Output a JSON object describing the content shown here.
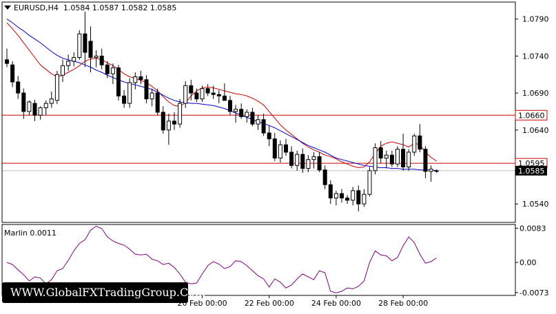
{
  "header": {
    "symbol": "EURUSD,H4",
    "ohlc": "1.0584 1.0587 1.0582 1.0585"
  },
  "watermark": "WWW.GlobalFXTradingGroup.Com",
  "colors": {
    "background": "#ffffff",
    "grid": "#c8c8c8",
    "candle_bull": "#ffffff",
    "candle_bear": "#000000",
    "red_ma": "#cc0000",
    "blue_ma": "#0000cc",
    "marlin": "#800080",
    "level_line": "#cc0000"
  },
  "chart_data": [
    {
      "type": "candlestick",
      "title": "EURUSD,H4",
      "ylim": [
        1.0515,
        1.0813
      ],
      "y_ticks": [
        "1.0790",
        "1.0740",
        "1.0690",
        "1.0640",
        "1.0540"
      ],
      "x_ticks": [
        "20 Feb 00:00",
        "22 Feb 00:00",
        "24 Feb 00:00",
        "28 Feb 00:00"
      ],
      "levels": [
        {
          "label": "1.0660",
          "value": 1.066
        },
        {
          "label": "1.0595",
          "value": 1.0595
        }
      ],
      "current_price": {
        "label": "1.0585",
        "value": 1.0585
      },
      "grid": true,
      "candles": [
        [
          1.0735,
          1.075,
          1.0725,
          1.073
        ],
        [
          1.0728,
          1.0733,
          1.0698,
          1.0705
        ],
        [
          1.0705,
          1.0713,
          1.0682,
          1.069
        ],
        [
          1.069,
          1.0696,
          1.0655,
          1.0665
        ],
        [
          1.0665,
          1.068,
          1.066,
          1.0678
        ],
        [
          1.0676,
          1.0681,
          1.0652,
          1.066
        ],
        [
          1.066,
          1.0672,
          1.0654,
          1.067
        ],
        [
          1.067,
          1.068,
          1.066,
          1.0676
        ],
        [
          1.0676,
          1.0692,
          1.067,
          1.0682
        ],
        [
          1.068,
          1.072,
          1.0675,
          1.0715
        ],
        [
          1.0714,
          1.0735,
          1.0705,
          1.0727
        ],
        [
          1.0727,
          1.0742,
          1.072,
          1.0733
        ],
        [
          1.0733,
          1.0745,
          1.0726,
          1.0738
        ],
        [
          1.0738,
          1.0775,
          1.0735,
          1.077
        ],
        [
          1.077,
          1.08,
          1.0725,
          1.0745
        ],
        [
          1.076,
          1.078,
          1.0718,
          1.0738
        ],
        [
          1.0738,
          1.0748,
          1.0725,
          1.074
        ],
        [
          1.074,
          1.075,
          1.0722,
          1.0728
        ],
        [
          1.0728,
          1.0733,
          1.071,
          1.0716
        ],
        [
          1.0716,
          1.073,
          1.0702,
          1.0724
        ],
        [
          1.0724,
          1.0728,
          1.068,
          1.0686
        ],
        [
          1.0686,
          1.0694,
          1.067,
          1.0676
        ],
        [
          1.0676,
          1.071,
          1.067,
          1.0704
        ],
        [
          1.0704,
          1.0718,
          1.0695,
          1.0712
        ],
        [
          1.0712,
          1.072,
          1.0702,
          1.0708
        ],
        [
          1.0708,
          1.0714,
          1.0676,
          1.0682
        ],
        [
          1.0682,
          1.0696,
          1.0672,
          1.069
        ],
        [
          1.069,
          1.0696,
          1.066,
          1.0664
        ],
        [
          1.0664,
          1.0672,
          1.0635,
          1.064
        ],
        [
          1.064,
          1.0662,
          1.062,
          1.0652
        ],
        [
          1.0652,
          1.0664,
          1.064,
          1.0648
        ],
        [
          1.0648,
          1.0682,
          1.0643,
          1.0676
        ],
        [
          1.0676,
          1.0706,
          1.067,
          1.07
        ],
        [
          1.07,
          1.0708,
          1.068,
          1.069
        ],
        [
          1.069,
          1.0696,
          1.0678,
          1.0682
        ],
        [
          1.0682,
          1.07,
          1.0678,
          1.0696
        ],
        [
          1.0696,
          1.0702,
          1.0686,
          1.069
        ],
        [
          1.069,
          1.07,
          1.0682,
          1.0688
        ],
        [
          1.0688,
          1.0694,
          1.0676,
          1.0686
        ],
        [
          1.0686,
          1.0703,
          1.0682,
          1.068
        ],
        [
          1.068,
          1.0686,
          1.066,
          1.0665
        ],
        [
          1.0665,
          1.0674,
          1.065,
          1.0668
        ],
        [
          1.0668,
          1.0676,
          1.0655,
          1.0658
        ],
        [
          1.0658,
          1.0668,
          1.065,
          1.0664
        ],
        [
          1.0664,
          1.067,
          1.0645,
          1.0648
        ],
        [
          1.0648,
          1.066,
          1.064,
          1.0654
        ],
        [
          1.0654,
          1.0662,
          1.0632,
          1.0636
        ],
        [
          1.0636,
          1.0646,
          1.0618,
          1.0628
        ],
        [
          1.0628,
          1.0636,
          1.0598,
          1.0602
        ],
        [
          1.0602,
          1.0626,
          1.0596,
          1.062
        ],
        [
          1.062,
          1.0628,
          1.0605,
          1.061
        ],
        [
          1.061,
          1.0618,
          1.0588,
          1.0592
        ],
        [
          1.0592,
          1.0612,
          1.0585,
          1.0607
        ],
        [
          1.0607,
          1.0615,
          1.0582,
          1.0588
        ],
        [
          1.0588,
          1.0606,
          1.0583,
          1.06
        ],
        [
          1.06,
          1.061,
          1.0588,
          1.0604
        ],
        [
          1.0604,
          1.061,
          1.0583,
          1.0586
        ],
        [
          1.0586,
          1.0592,
          1.056,
          1.0566
        ],
        [
          1.0566,
          1.0572,
          1.054,
          1.0548
        ],
        [
          1.0548,
          1.0558,
          1.0538,
          1.0554
        ],
        [
          1.0554,
          1.056,
          1.0542,
          1.0548
        ],
        [
          1.0548,
          1.0552,
          1.054,
          1.0545
        ],
        [
          1.0545,
          1.0563,
          1.0538,
          1.0558
        ],
        [
          1.0558,
          1.0565,
          1.053,
          1.054
        ],
        [
          1.054,
          1.056,
          1.0536,
          1.0553
        ],
        [
          1.0553,
          1.059,
          1.055,
          1.0585
        ],
        [
          1.0585,
          1.0622,
          1.058,
          1.0616
        ],
        [
          1.0616,
          1.0625,
          1.0595,
          1.0602
        ],
        [
          1.0602,
          1.0612,
          1.0588,
          1.0606
        ],
        [
          1.0606,
          1.0612,
          1.059,
          1.0594
        ],
        [
          1.0594,
          1.0618,
          1.059,
          1.0614
        ],
        [
          1.0614,
          1.0635,
          1.0585,
          1.059
        ],
        [
          1.059,
          1.0614,
          1.0585,
          1.061
        ],
        [
          1.061,
          1.0635,
          1.0605,
          1.0632
        ],
        [
          1.0632,
          1.0648,
          1.061,
          1.0614
        ],
        [
          1.0614,
          1.0618,
          1.0575,
          1.0584
        ],
        [
          1.0584,
          1.0592,
          1.057,
          1.0587
        ],
        [
          1.0584,
          1.0587,
          1.0582,
          1.0585
        ]
      ],
      "red_ma": [
        1.0785,
        1.0777,
        1.0768,
        1.0758,
        1.0748,
        1.0738,
        1.0728,
        1.0722,
        1.0716,
        1.0712,
        1.0714,
        1.0718,
        1.0722,
        1.0727,
        1.0733,
        1.0736,
        1.0737,
        1.0735,
        1.0731,
        1.0727,
        1.0722,
        1.0716,
        1.0712,
        1.071,
        1.0707,
        1.0704,
        1.0699,
        1.0693,
        1.0685,
        1.0678,
        1.0673,
        1.0672,
        1.0677,
        1.0686,
        1.0693,
        1.0697,
        1.0698,
        1.0697,
        1.0695,
        1.0693,
        1.0691,
        1.0689,
        1.0688,
        1.0686,
        1.0683,
        1.0679,
        1.0674,
        1.0665,
        1.0656,
        1.0647,
        1.064,
        1.0634,
        1.0628,
        1.0622,
        1.0617,
        1.0613,
        1.061,
        1.0606,
        1.0604,
        1.0601,
        1.0597,
        1.0594,
        1.0591,
        1.0589,
        1.059,
        1.0597,
        1.0608,
        1.0618,
        1.0622,
        1.0624,
        1.0622,
        1.062,
        1.0617,
        1.0622,
        1.062,
        1.061,
        1.0603,
        1.0598
      ],
      "blue_ma": [
        1.079,
        1.0785,
        1.0779,
        1.0774,
        1.0768,
        1.0763,
        1.0758,
        1.0752,
        1.0746,
        1.0741,
        1.0737,
        1.0735,
        1.0733,
        1.0731,
        1.0728,
        1.0725,
        1.0721,
        1.0718,
        1.0714,
        1.0711,
        1.0708,
        1.0705,
        1.0703,
        1.0701,
        1.0699,
        1.0697,
        1.0695,
        1.0691,
        1.0687,
        1.0683,
        1.068,
        1.0678,
        1.0677,
        1.0676,
        1.0676,
        1.0675,
        1.0674,
        1.0673,
        1.0671,
        1.0669,
        1.0666,
        1.0663,
        1.066,
        1.0657,
        1.0654,
        1.0651,
        1.0649,
        1.0646,
        1.0643,
        1.0639,
        1.0635,
        1.0631,
        1.0627,
        1.0623,
        1.0619,
        1.0616,
        1.0613,
        1.061,
        1.0606,
        1.0602,
        1.06,
        1.0598,
        1.0596,
        1.0594,
        1.0592,
        1.0591,
        1.059,
        1.0589,
        1.0589,
        1.0588,
        1.0588,
        1.0587,
        1.0587,
        1.0587,
        1.0586,
        1.0586,
        1.0586,
        1.0585
      ]
    },
    {
      "type": "line",
      "title": "Marlin 0.0011",
      "ylim": [
        -0.008,
        0.0092
      ],
      "y_ticks": [
        "0.0083",
        "0.00",
        "-0.0073"
      ],
      "series": [
        {
          "values": [
            0.0,
            -0.0005,
            -0.0018,
            -0.003,
            -0.0045,
            -0.0035,
            -0.0038,
            -0.0052,
            -0.0042,
            -0.002,
            -0.0015,
            0.0005,
            0.0028,
            0.0046,
            0.0055,
            0.0078,
            0.0088,
            0.0082,
            0.0062,
            0.0052,
            0.0046,
            0.0042,
            0.0032,
            0.002,
            0.0018,
            0.002,
            0.0008,
            0.0004,
            -0.0005,
            -0.0002,
            -0.0012,
            -0.0028,
            -0.0048,
            -0.0052,
            -0.005,
            -0.0028,
            -0.0008,
            0.0002,
            -0.0004,
            -0.0015,
            -0.001,
            0.0004,
            0.0002,
            -0.0008,
            -0.002,
            -0.0032,
            -0.004,
            -0.006,
            -0.004,
            -0.0048,
            -0.0062,
            -0.0055,
            -0.004,
            -0.0028,
            -0.0035,
            -0.0042,
            -0.002,
            -0.0025,
            -0.007,
            -0.0074,
            -0.007,
            -0.0062,
            -0.0064,
            -0.0058,
            -0.0045,
            0.0,
            0.0028,
            0.0018,
            0.0016,
            0.0004,
            0.0012,
            0.004,
            0.0062,
            0.0048,
            0.002,
            -0.0002,
            0.0002,
            0.0011
          ]
        }
      ]
    }
  ]
}
